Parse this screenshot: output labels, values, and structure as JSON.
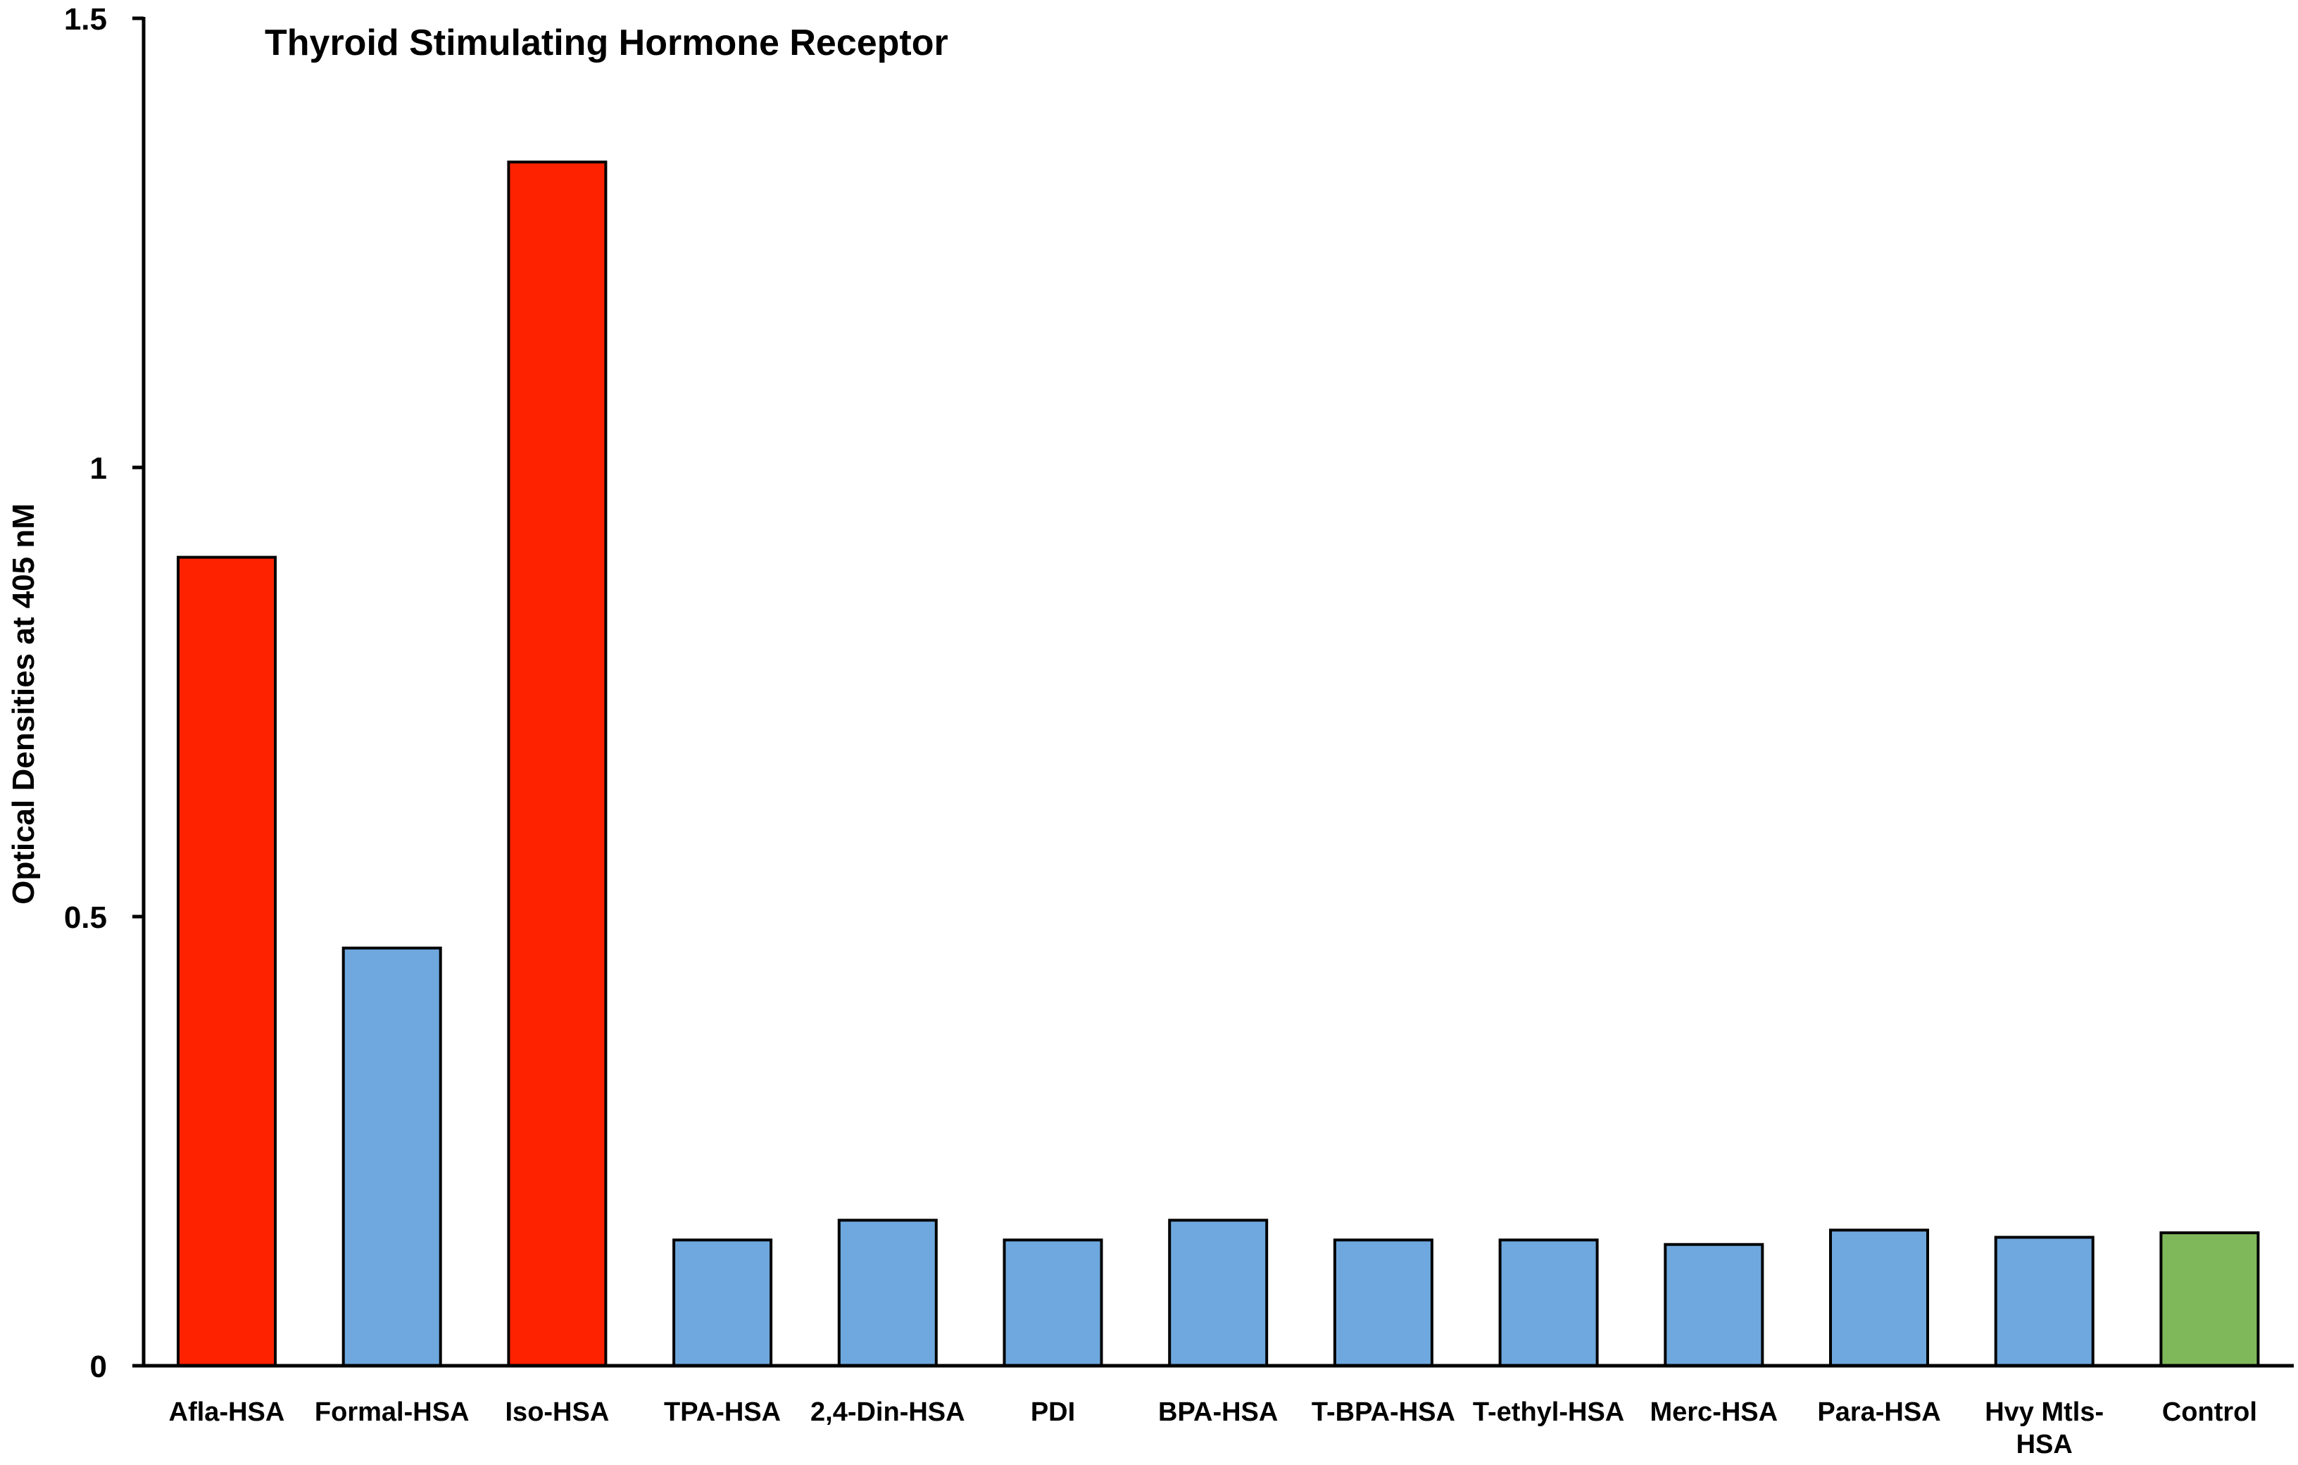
{
  "chart_data": {
    "type": "bar",
    "title": "Thyroid Stimulating Hormone Receptor",
    "xlabel": "",
    "ylabel": "Optical Densities at 405 nM",
    "ylim": [
      0,
      1.5
    ],
    "yticks": [
      {
        "value": 0,
        "label": "0"
      },
      {
        "value": 0.5,
        "label": "0.5"
      },
      {
        "value": 1,
        "label": "1"
      },
      {
        "value": 1.5,
        "label": "1.5"
      }
    ],
    "grid": false,
    "legend": "none",
    "categories": [
      "Afla-HSA",
      "Formal-HSA",
      "Iso-HSA",
      "TPA-HSA",
      "2,4-Din-HSA",
      "PDI",
      "BPA-HSA",
      "T-BPA-HSA",
      "T-ethyl-HSA",
      "Merc-HSA",
      "Para-HSA",
      "Hvy Mtls-HSA",
      "Control"
    ],
    "values": [
      0.9,
      0.465,
      1.34,
      0.14,
      0.162,
      0.14,
      0.162,
      0.14,
      0.14,
      0.135,
      0.151,
      0.143,
      0.148
    ],
    "bar_colors": [
      "#ff2200",
      "#6ea8de",
      "#ff2200",
      "#6ea8de",
      "#6ea8de",
      "#6ea8de",
      "#6ea8de",
      "#6ea8de",
      "#6ea8de",
      "#6ea8de",
      "#6ea8de",
      "#6ea8de",
      "#7fb85a"
    ],
    "colors": {
      "positive": "#ff2200",
      "neutral": "#6ea8de",
      "control": "#7fb85a",
      "axis": "#000000"
    }
  }
}
